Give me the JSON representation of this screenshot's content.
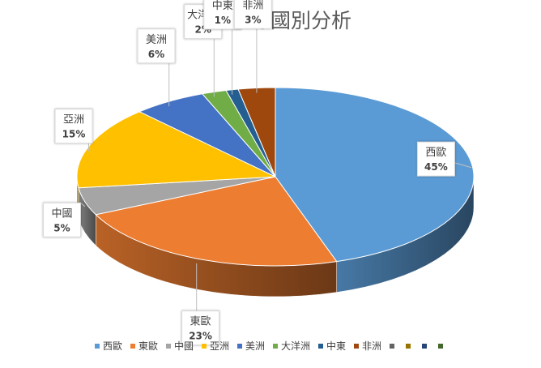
{
  "chart_data": {
    "type": "pie",
    "title": "買主來源國別分析",
    "categories": [
      "西歐",
      "東歐",
      "中國",
      "亞洲",
      "美洲",
      "大洋洲",
      "中東",
      "非洲"
    ],
    "values": [
      45,
      23,
      5,
      15,
      6,
      2,
      1,
      3
    ],
    "value_labels": [
      "45%",
      "23%",
      "5%",
      "15%",
      "6%",
      "2%",
      "1%",
      "3%"
    ],
    "colors": [
      "#5B9BD5",
      "#ED7D31",
      "#A5A5A5",
      "#FFC000",
      "#4472C4",
      "#70AD47",
      "#255E91",
      "#9E480E"
    ],
    "legend_position": "bottom",
    "legend_extra_markers": [
      "#636363",
      "#997300",
      "#264478",
      "#43682B"
    ],
    "style": "3d-pie"
  }
}
